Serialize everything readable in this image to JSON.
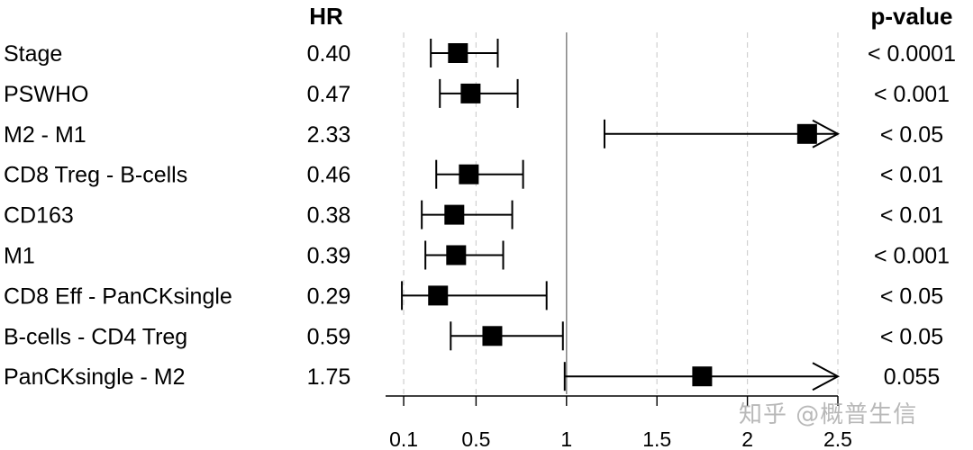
{
  "chart_data": {
    "type": "forest",
    "hr_header": "HR",
    "pvalue_header": "p-value",
    "x_ticks": [
      0.1,
      0.5,
      1,
      1.5,
      2,
      2.5
    ],
    "x_tick_labels": [
      "0.1",
      "0.5",
      "1",
      "1.5",
      "2",
      "2.5"
    ],
    "xlim": [
      0,
      2.5
    ],
    "reference_line": 1,
    "rows": [
      {
        "label": "Stage",
        "hr_text": "0.40",
        "hr": 0.4,
        "lower": 0.25,
        "upper": 0.62,
        "p": "< 0.0001",
        "upper_truncated": false
      },
      {
        "label": "PSWHO",
        "hr_text": "0.47",
        "hr": 0.47,
        "lower": 0.3,
        "upper": 0.73,
        "p": "< 0.001",
        "upper_truncated": false
      },
      {
        "label": "M2 - M1",
        "hr_text": "2.33",
        "hr": 2.33,
        "lower": 1.21,
        "upper": 2.5,
        "p": "< 0.05",
        "upper_truncated": true
      },
      {
        "label": "CD8 Treg - B-cells",
        "hr_text": "0.46",
        "hr": 0.46,
        "lower": 0.28,
        "upper": 0.76,
        "p": "< 0.01",
        "upper_truncated": false
      },
      {
        "label": "CD163",
        "hr_text": "0.38",
        "hr": 0.38,
        "lower": 0.2,
        "upper": 0.7,
        "p": "< 0.01",
        "upper_truncated": false
      },
      {
        "label": "M1",
        "hr_text": "0.39",
        "hr": 0.39,
        "lower": 0.22,
        "upper": 0.65,
        "p": "< 0.001",
        "upper_truncated": false
      },
      {
        "label": "CD8 Eff - PanCKsingle",
        "hr_text": "0.29",
        "hr": 0.29,
        "lower": 0.09,
        "upper": 0.89,
        "p": "< 0.05",
        "upper_truncated": false
      },
      {
        "label": "B-cells - CD4 Treg",
        "hr_text": "0.59",
        "hr": 0.59,
        "lower": 0.36,
        "upper": 0.98,
        "p": "< 0.05",
        "upper_truncated": false
      },
      {
        "label": "PanCKsingle - M2",
        "hr_text": "1.75",
        "hr": 1.75,
        "lower": 0.99,
        "upper": 2.5,
        "p": "0.055",
        "upper_truncated": true
      }
    ],
    "grid": "vertical dashed at ticks"
  },
  "watermark": "知乎 @概普生信"
}
